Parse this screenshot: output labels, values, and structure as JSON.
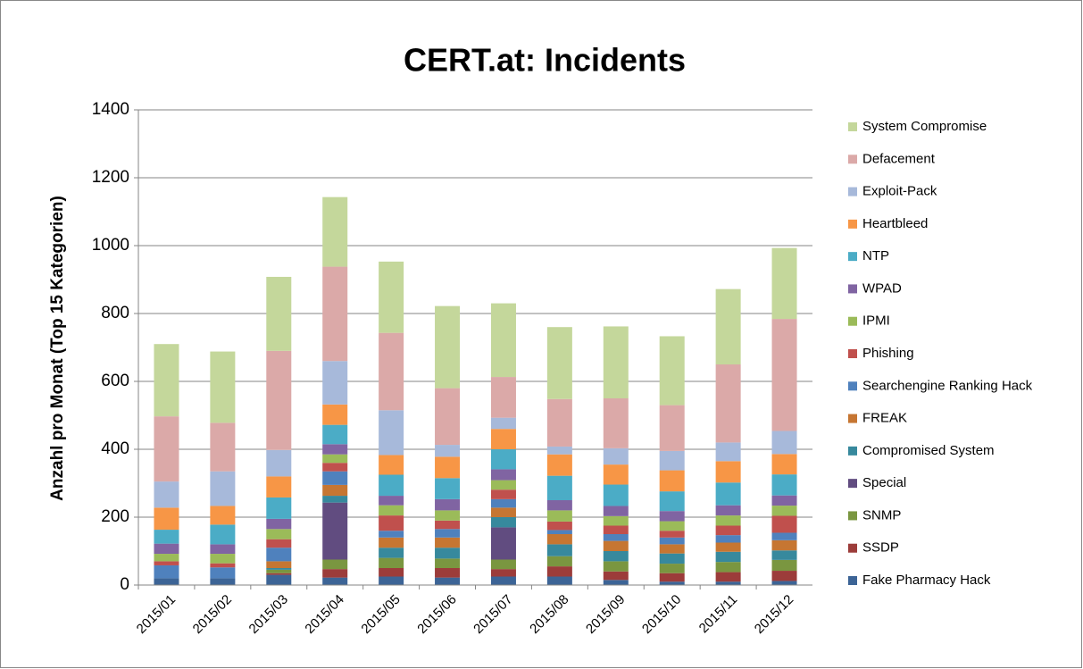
{
  "chart_data": {
    "type": "stacked_bar",
    "title": "CERT.at: Incidents",
    "y_label": "Anzahl pro Monat (Top 15 Kategorien)",
    "categories": [
      "2015/01",
      "2015/02",
      "2015/03",
      "2015/04",
      "2015/05",
      "2015/06",
      "2015/07",
      "2015/08",
      "2015/09",
      "2015/10",
      "2015/11",
      "2015/12"
    ],
    "ylim": [
      0,
      1400
    ],
    "yticks": [
      0,
      200,
      400,
      600,
      800,
      1000,
      1200,
      1400
    ],
    "grid": true,
    "legend": "right",
    "series": [
      {
        "name": "Fake Pharmacy Hack",
        "color": "#3c6496",
        "values": [
          20,
          20,
          30,
          22,
          25,
          22,
          25,
          25,
          15,
          10,
          10,
          12
        ]
      },
      {
        "name": "SSDP",
        "color": "#9c3c3a",
        "values": [
          0,
          0,
          5,
          25,
          25,
          28,
          22,
          30,
          25,
          25,
          28,
          30
        ]
      },
      {
        "name": "SNMP",
        "color": "#7a9640",
        "values": [
          0,
          0,
          10,
          28,
          30,
          28,
          28,
          30,
          30,
          28,
          30,
          32
        ]
      },
      {
        "name": "Special",
        "color": "#614c80",
        "values": [
          0,
          0,
          0,
          168,
          0,
          0,
          95,
          0,
          0,
          0,
          0,
          0
        ]
      },
      {
        "name": "Compromised System",
        "color": "#37899d",
        "values": [
          0,
          0,
          5,
          20,
          30,
          32,
          30,
          35,
          30,
          30,
          30,
          28
        ]
      },
      {
        "name": "FREAK",
        "color": "#c67632",
        "values": [
          0,
          0,
          20,
          32,
          30,
          30,
          28,
          30,
          30,
          27,
          27,
          30
        ]
      },
      {
        "name": "Searchengine Ranking Hack",
        "color": "#4f81bd",
        "values": [
          38,
          32,
          40,
          40,
          20,
          25,
          25,
          12,
          20,
          20,
          22,
          22
        ]
      },
      {
        "name": "Phishing",
        "color": "#c0504d",
        "values": [
          12,
          12,
          25,
          25,
          45,
          25,
          28,
          25,
          25,
          20,
          28,
          50
        ]
      },
      {
        "name": "IPMI",
        "color": "#9bbb59",
        "values": [
          22,
          28,
          30,
          25,
          30,
          30,
          28,
          33,
          28,
          28,
          30,
          30
        ]
      },
      {
        "name": "WPAD",
        "color": "#8064a2",
        "values": [
          30,
          28,
          30,
          30,
          28,
          33,
          32,
          30,
          30,
          30,
          30,
          30
        ]
      },
      {
        "name": "NTP",
        "color": "#4bacc6",
        "values": [
          41,
          58,
          63,
          57,
          62,
          62,
          59,
          72,
          63,
          58,
          67,
          62
        ]
      },
      {
        "name": "Heartbleed",
        "color": "#f79646",
        "values": [
          65,
          55,
          62,
          60,
          58,
          63,
          60,
          63,
          59,
          62,
          63,
          60
        ]
      },
      {
        "name": "Exploit-Pack",
        "color": "#a7b9da",
        "values": [
          77,
          102,
          78,
          128,
          132,
          35,
          33,
          23,
          48,
          57,
          55,
          68
        ]
      },
      {
        "name": "Defacement",
        "color": "#dba9a8",
        "values": [
          192,
          143,
          292,
          278,
          228,
          167,
          120,
          140,
          147,
          135,
          230,
          330
        ]
      },
      {
        "name": "System Compromise",
        "color": "#c4d79b",
        "values": [
          213,
          210,
          218,
          205,
          210,
          242,
          217,
          212,
          212,
          203,
          222,
          209
        ]
      }
    ]
  }
}
